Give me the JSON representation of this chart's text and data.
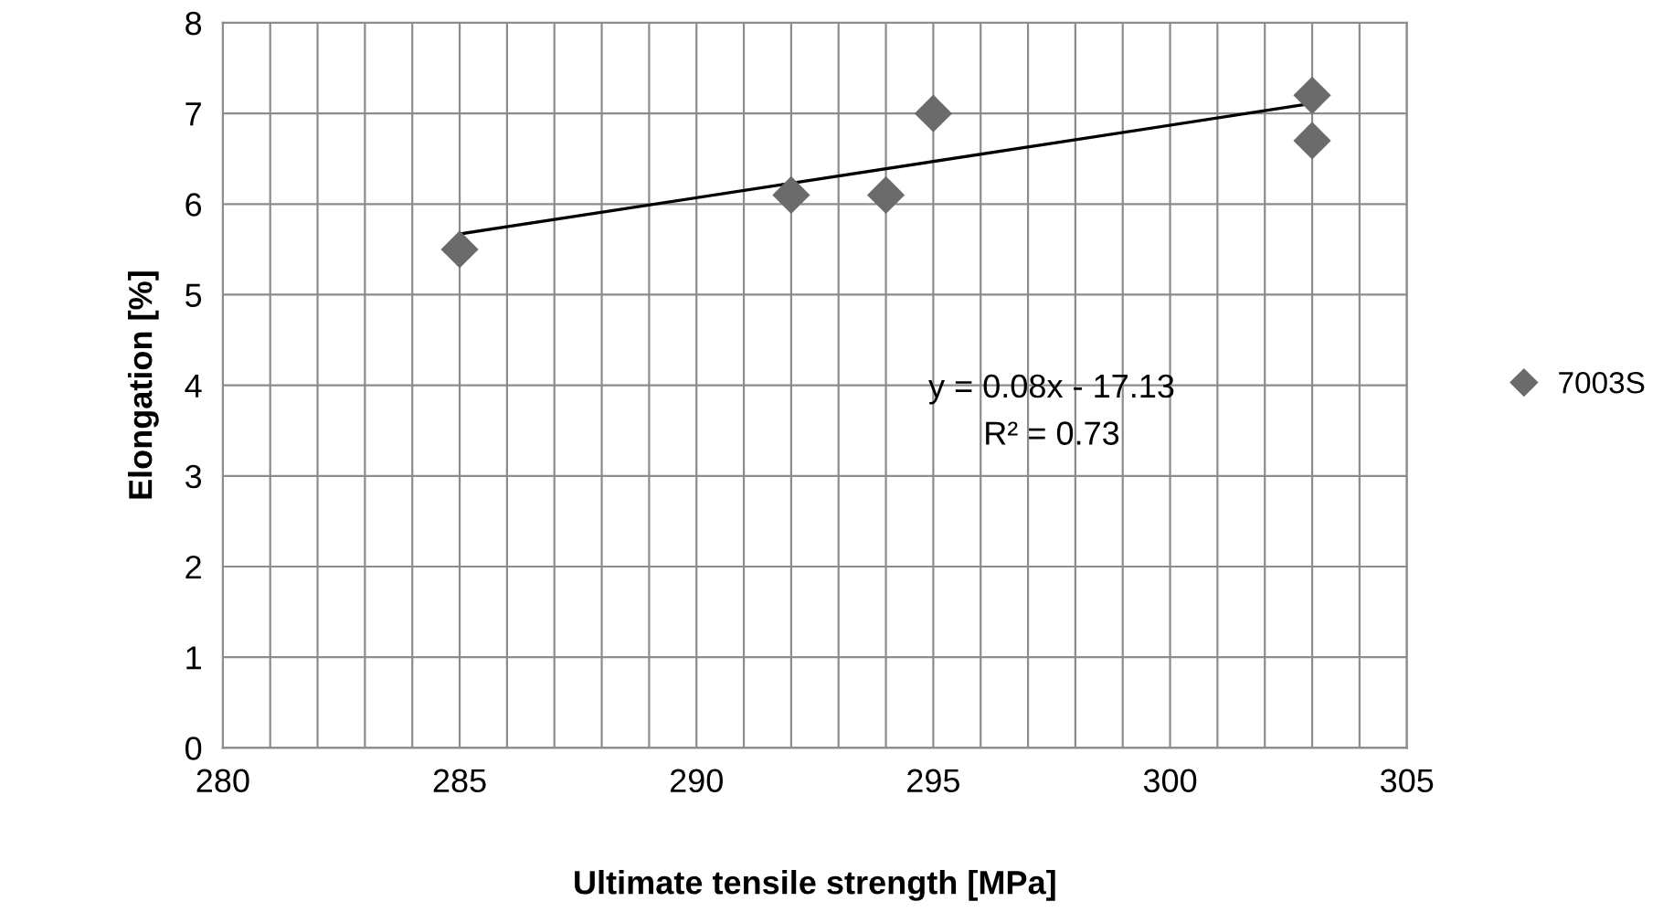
{
  "chart_data": {
    "type": "scatter",
    "xlabel": "Ultimate tensile strength [MPa]",
    "ylabel": "Elongation [%]",
    "series": [
      {
        "name": "7003S",
        "color": "#6b6b6b",
        "x": [
          285,
          292,
          294,
          295,
          303,
          303
        ],
        "values": [
          5.5,
          6.1,
          6.1,
          7.0,
          7.2,
          6.7
        ],
        "marker": "diamond"
      },
      {
        "type": "line",
        "color": "#000000",
        "x": [
          285,
          303
        ],
        "values": [
          5.67,
          7.11
        ],
        "marker": "none"
      }
    ],
    "annotations": [
      "y = 0.08x - 17.13",
      "R² = 0.73"
    ],
    "xlim": [
      280,
      305
    ],
    "xticks": [
      280,
      {
        "value": 281,
        "label": null
      },
      {
        "value": 282,
        "label": null
      },
      {
        "value": 283,
        "label": null
      },
      {
        "value": 284,
        "label": null
      },
      285,
      {
        "value": 286,
        "label": null
      },
      {
        "value": 287,
        "label": null
      },
      {
        "value": 288,
        "label": null
      },
      {
        "value": 289,
        "label": null
      },
      290,
      {
        "value": 291,
        "label": null
      },
      {
        "value": 292,
        "label": null
      },
      {
        "value": 293,
        "label": null
      },
      {
        "value": 294,
        "label": null
      },
      295,
      {
        "value": 296,
        "label": null
      },
      {
        "value": 297,
        "label": null
      },
      {
        "value": 298,
        "label": null
      },
      {
        "value": 299,
        "label": null
      },
      300,
      {
        "value": 301,
        "label": null
      },
      {
        "value": 302,
        "label": null
      },
      {
        "value": 303,
        "label": null
      },
      {
        "value": 304,
        "label": null
      },
      305
    ],
    "ylim": [
      0,
      8
    ],
    "yticks": [
      0,
      1,
      2,
      3,
      4,
      5,
      6,
      7,
      8
    ],
    "grid": true,
    "legend": "right"
  }
}
